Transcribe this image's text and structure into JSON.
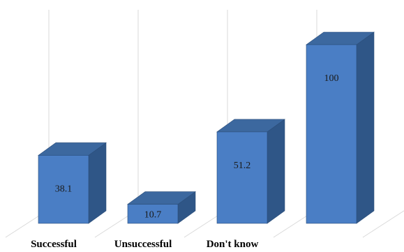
{
  "chart_data": {
    "type": "bar",
    "style": "3d-column",
    "categories": [
      "Successful",
      "Unsuccessful",
      "Don't know",
      ""
    ],
    "values": [
      38.1,
      10.7,
      51.2,
      100
    ],
    "data_labels": [
      "38.1",
      "10.7",
      "51.2",
      "100"
    ],
    "title": "",
    "xlabel": "",
    "ylabel": "",
    "ylim": [
      0,
      100
    ],
    "grid": true,
    "legend": "none",
    "colors": {
      "front": "#4a7ec5",
      "side": "#2f5687",
      "top": "#3c689f",
      "edge": "#2c4e7a"
    }
  }
}
